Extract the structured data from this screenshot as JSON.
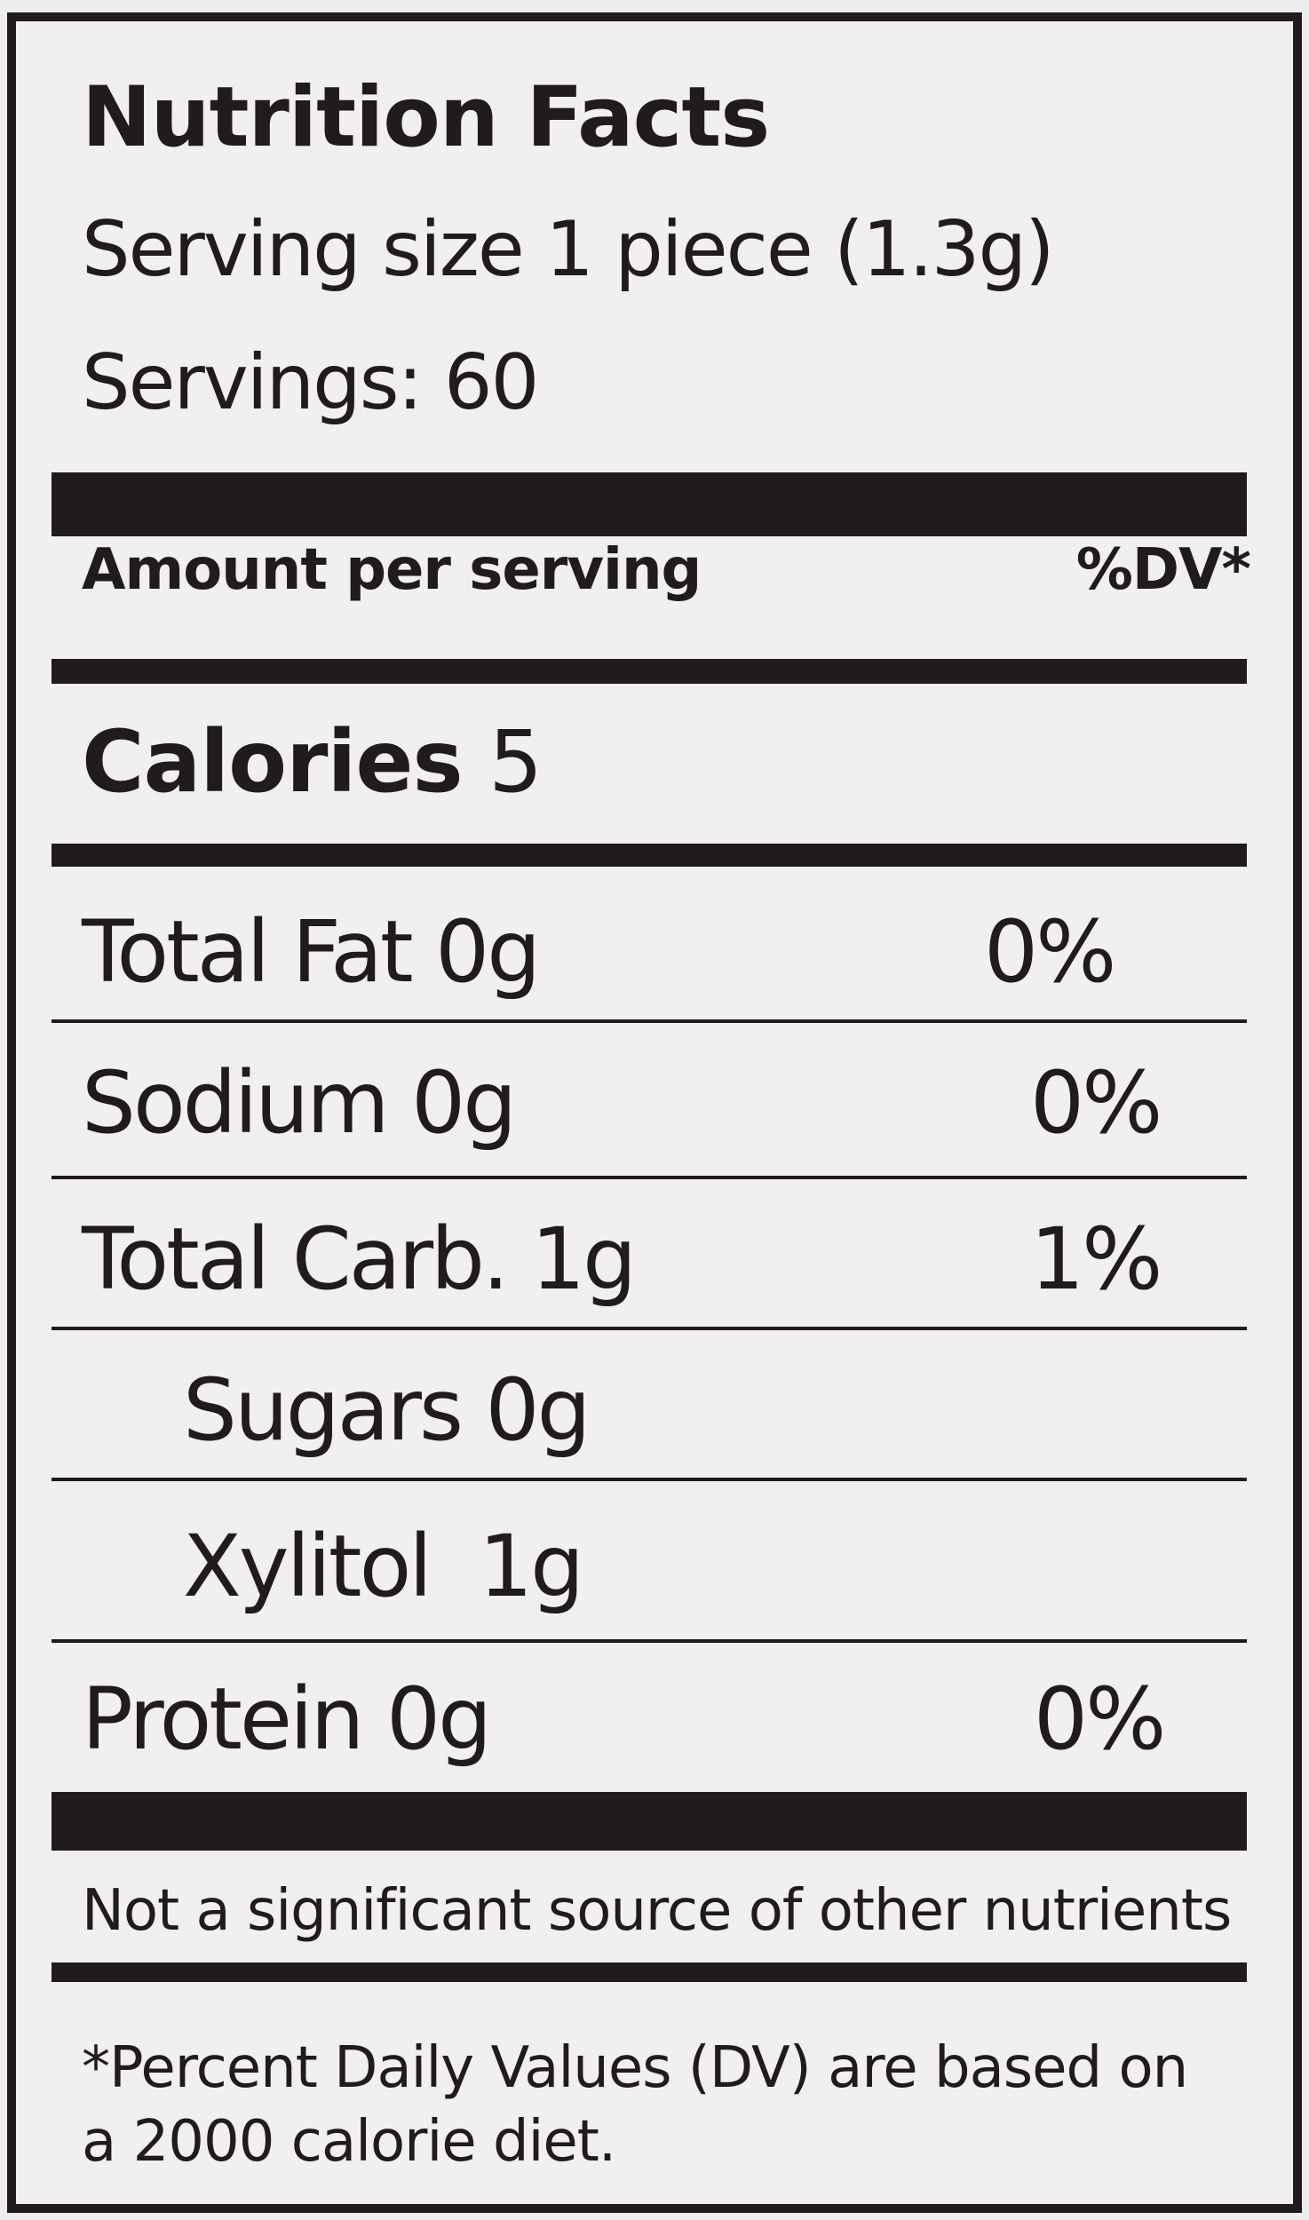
{
  "label": {
    "title": "Nutrition Facts",
    "serving_size": "Serving size 1 piece (1.3g)",
    "servings": "Servings: 60",
    "amount_per_serving": "Amount per serving",
    "dv_header": "%DV*",
    "calories_label": "Calories",
    "calories_value": "5",
    "nutrients": [
      {
        "name": "Total Fat 0g",
        "dv": "0%"
      },
      {
        "name": "Sodium 0g",
        "dv": "0%"
      },
      {
        "name": "Total Carb. 1g",
        "dv": "1%"
      },
      {
        "name": "Sugars 0g",
        "dv": ""
      },
      {
        "name": "Xylitol  1g",
        "dv": ""
      },
      {
        "name": "Protein 0g",
        "dv": "0%"
      }
    ],
    "not_significant": "Not a significant source of other nutrients",
    "footnote": "*Percent Daily Values (DV) are based on a 2000 calorie diet."
  }
}
